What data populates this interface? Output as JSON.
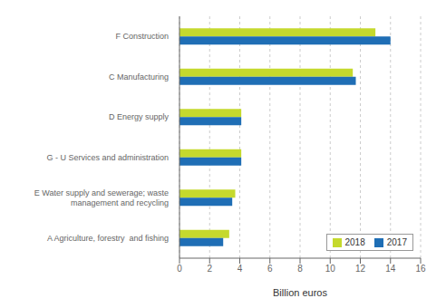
{
  "chart_data": {
    "type": "bar",
    "orientation": "horizontal",
    "categories": [
      "F Construction",
      "C Manufacturing",
      "D Energy supply",
      "G - U Services and administration",
      "E Water supply and sewerage; waste\nmanagement and recycling",
      "A Agriculture, forestry  and fishing"
    ],
    "series": [
      {
        "name": "2018",
        "color": "#c5d92d",
        "values": [
          13.0,
          11.5,
          4.1,
          4.1,
          3.7,
          3.3
        ]
      },
      {
        "name": "2017",
        "color": "#1f6eb5",
        "values": [
          14.0,
          11.7,
          4.1,
          4.1,
          3.5,
          2.9
        ]
      }
    ],
    "xlabel": "Billion euros",
    "xlim": [
      0,
      16
    ],
    "xticks": [
      0,
      2,
      4,
      6,
      8,
      10,
      12,
      14,
      16
    ],
    "grid": true,
    "legend": "lower right"
  }
}
